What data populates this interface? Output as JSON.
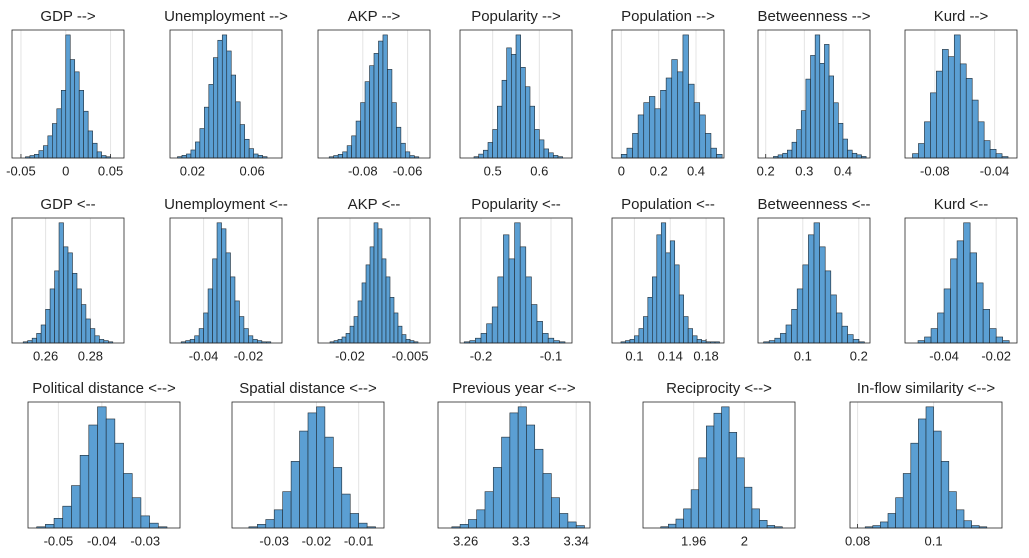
{
  "chart_data": [
    {
      "type": "histogram",
      "title": "GDP -->",
      "color": "#5b9fd3",
      "grid": true,
      "xlim": [
        -0.06,
        0.065
      ],
      "xticks": [
        -0.05,
        0,
        0.05
      ],
      "bins": [
        -0.045,
        -0.04,
        -0.035,
        -0.03,
        -0.025,
        -0.02,
        -0.015,
        -0.01,
        -0.005,
        0,
        0.005,
        0.01,
        0.015,
        0.02,
        0.025,
        0.03,
        0.035,
        0.04,
        0.045,
        0.05
      ],
      "counts": [
        1,
        2,
        3,
        6,
        10,
        18,
        28,
        40,
        55,
        100,
        80,
        70,
        55,
        38,
        22,
        12,
        5,
        2,
        1
      ]
    },
    {
      "type": "histogram",
      "title": "Unemployment -->",
      "color": "#5b9fd3",
      "grid": true,
      "xlim": [
        0.005,
        0.08
      ],
      "xticks": [
        0.02,
        0.06
      ],
      "bins": [
        0.01,
        0.013,
        0.016,
        0.019,
        0.022,
        0.025,
        0.028,
        0.031,
        0.034,
        0.037,
        0.04,
        0.043,
        0.046,
        0.049,
        0.052,
        0.055,
        0.058,
        0.061,
        0.064,
        0.067,
        0.07
      ],
      "counts": [
        1,
        2,
        3,
        6,
        12,
        22,
        38,
        55,
        75,
        88,
        92,
        80,
        62,
        42,
        25,
        14,
        7,
        3,
        2,
        1
      ]
    },
    {
      "type": "histogram",
      "title": "AKP -->",
      "color": "#5b9fd3",
      "grid": true,
      "xlim": [
        -0.1,
        -0.05
      ],
      "xticks": [
        -0.08,
        -0.06
      ],
      "bins": [
        -0.095,
        -0.093,
        -0.091,
        -0.089,
        -0.087,
        -0.085,
        -0.083,
        -0.081,
        -0.079,
        -0.077,
        -0.075,
        -0.073,
        -0.071,
        -0.069,
        -0.067,
        -0.065,
        -0.063,
        -0.061,
        -0.059,
        -0.057,
        -0.055
      ],
      "counts": [
        1,
        2,
        3,
        5,
        10,
        18,
        30,
        45,
        62,
        75,
        85,
        95,
        100,
        72,
        45,
        25,
        12,
        5,
        2,
        1
      ]
    },
    {
      "type": "histogram",
      "title": "Popularity -->",
      "color": "#5b9fd3",
      "grid": true,
      "xlim": [
        0.43,
        0.67
      ],
      "xticks": [
        0.5,
        0.6
      ],
      "bins": [
        0.46,
        0.47,
        0.48,
        0.49,
        0.5,
        0.51,
        0.52,
        0.53,
        0.54,
        0.55,
        0.56,
        0.57,
        0.58,
        0.59,
        0.6,
        0.61,
        0.62,
        0.63,
        0.64,
        0.65
      ],
      "counts": [
        1,
        3,
        6,
        12,
        22,
        40,
        60,
        85,
        80,
        95,
        70,
        55,
        40,
        22,
        14,
        7,
        4,
        2,
        1
      ]
    },
    {
      "type": "histogram",
      "title": "Population -->",
      "color": "#5b9fd3",
      "grid": true,
      "xlim": [
        -0.05,
        0.55
      ],
      "xticks": [
        0,
        0.2,
        0.4
      ],
      "bins": [
        0,
        0.03,
        0.06,
        0.09,
        0.12,
        0.15,
        0.18,
        0.21,
        0.24,
        0.27,
        0.3,
        0.33,
        0.36,
        0.39,
        0.42,
        0.45,
        0.48,
        0.51,
        0.54
      ],
      "counts": [
        3,
        8,
        20,
        35,
        45,
        50,
        40,
        55,
        65,
        80,
        70,
        100,
        60,
        45,
        35,
        20,
        8,
        3
      ]
    },
    {
      "type": "histogram",
      "title": "Betweenness -->",
      "color": "#5b9fd3",
      "grid": true,
      "xlim": [
        0.18,
        0.47
      ],
      "xticks": [
        0.2,
        0.3,
        0.4
      ],
      "bins": [
        0.22,
        0.232,
        0.244,
        0.256,
        0.268,
        0.28,
        0.292,
        0.304,
        0.316,
        0.328,
        0.34,
        0.352,
        0.364,
        0.376,
        0.388,
        0.4,
        0.412,
        0.424,
        0.436,
        0.448,
        0.46
      ],
      "counts": [
        1,
        2,
        3,
        5,
        10,
        18,
        30,
        50,
        65,
        78,
        60,
        72,
        52,
        35,
        22,
        12,
        5,
        3,
        2,
        1
      ]
    },
    {
      "type": "histogram",
      "title": "Kurd -->",
      "color": "#5b9fd3",
      "grid": true,
      "xlim": [
        -0.1,
        -0.025
      ],
      "xticks": [
        -0.08,
        -0.04
      ],
      "bins": [
        -0.095,
        -0.091,
        -0.087,
        -0.083,
        -0.079,
        -0.075,
        -0.071,
        -0.067,
        -0.063,
        -0.059,
        -0.055,
        -0.051,
        -0.047,
        -0.043,
        -0.039,
        -0.035,
        -0.031
      ],
      "counts": [
        3,
        10,
        25,
        45,
        60,
        75,
        70,
        85,
        65,
        55,
        40,
        25,
        12,
        6,
        3,
        1
      ]
    },
    {
      "type": "histogram",
      "title": "GDP <--",
      "color": "#5b9fd3",
      "grid": true,
      "xlim": [
        0.245,
        0.295
      ],
      "xticks": [
        0.26,
        0.28
      ],
      "bins": [
        0.25,
        0.252,
        0.254,
        0.256,
        0.258,
        0.26,
        0.262,
        0.264,
        0.266,
        0.268,
        0.27,
        0.272,
        0.274,
        0.276,
        0.278,
        0.28,
        0.282,
        0.284,
        0.286,
        0.288,
        0.29
      ],
      "counts": [
        1,
        2,
        4,
        8,
        15,
        28,
        45,
        60,
        100,
        80,
        75,
        58,
        45,
        32,
        20,
        12,
        6,
        3,
        2,
        1
      ]
    },
    {
      "type": "histogram",
      "title": "Unemployment <--",
      "color": "#5b9fd3",
      "grid": true,
      "xlim": [
        -0.055,
        -0.005
      ],
      "xticks": [
        -0.04,
        -0.02
      ],
      "bins": [
        -0.05,
        -0.048,
        -0.046,
        -0.044,
        -0.042,
        -0.04,
        -0.038,
        -0.036,
        -0.034,
        -0.032,
        -0.03,
        -0.028,
        -0.026,
        -0.024,
        -0.022,
        -0.02,
        -0.018,
        -0.016,
        -0.014,
        -0.012,
        -0.01
      ],
      "counts": [
        1,
        2,
        3,
        6,
        12,
        25,
        45,
        70,
        100,
        95,
        75,
        55,
        35,
        22,
        12,
        6,
        3,
        2,
        1,
        1
      ]
    },
    {
      "type": "histogram",
      "title": "AKP <--",
      "color": "#5b9fd3",
      "grid": true,
      "xlim": [
        -0.028,
        0.0
      ],
      "xticks": [
        -0.02,
        -0.005
      ],
      "bins": [
        -0.025,
        -0.024,
        -0.023,
        -0.022,
        -0.021,
        -0.02,
        -0.019,
        -0.018,
        -0.017,
        -0.016,
        -0.015,
        -0.014,
        -0.013,
        -0.012,
        -0.011,
        -0.01,
        -0.009,
        -0.008,
        -0.007,
        -0.006,
        -0.005,
        -0.004,
        -0.003
      ],
      "counts": [
        1,
        2,
        3,
        5,
        8,
        14,
        22,
        35,
        50,
        65,
        80,
        100,
        95,
        70,
        55,
        38,
        25,
        14,
        7,
        3,
        2,
        1
      ]
    },
    {
      "type": "histogram",
      "title": "Popularity <--",
      "color": "#5b9fd3",
      "grid": true,
      "xlim": [
        -0.23,
        -0.07
      ],
      "xticks": [
        -0.2,
        -0.1
      ],
      "bins": [
        -0.224,
        -0.216,
        -0.208,
        -0.2,
        -0.192,
        -0.184,
        -0.176,
        -0.168,
        -0.16,
        -0.152,
        -0.144,
        -0.136,
        -0.128,
        -0.12,
        -0.112,
        -0.104,
        -0.096,
        -0.088,
        -0.08
      ],
      "counts": [
        1,
        2,
        4,
        8,
        16,
        30,
        55,
        90,
        70,
        100,
        80,
        55,
        32,
        18,
        8,
        4,
        2,
        1
      ]
    },
    {
      "type": "histogram",
      "title": "Population <--",
      "color": "#5b9fd3",
      "grid": true,
      "xlim": [
        0.075,
        0.2
      ],
      "xticks": [
        0.1,
        0.14,
        0.18
      ],
      "bins": [
        0.085,
        0.09,
        0.095,
        0.1,
        0.105,
        0.11,
        0.115,
        0.12,
        0.125,
        0.13,
        0.135,
        0.14,
        0.145,
        0.15,
        0.155,
        0.16,
        0.165,
        0.17,
        0.175,
        0.18,
        0.185,
        0.19,
        0.195
      ],
      "counts": [
        1,
        2,
        3,
        6,
        12,
        22,
        38,
        55,
        90,
        100,
        75,
        85,
        65,
        40,
        22,
        12,
        6,
        3,
        2,
        1,
        1,
        1
      ]
    },
    {
      "type": "histogram",
      "title": "Betweenness <--",
      "color": "#5b9fd3",
      "grid": true,
      "xlim": [
        0.02,
        0.22
      ],
      "xticks": [
        0.1,
        0.2
      ],
      "bins": [
        0.03,
        0.04,
        0.05,
        0.06,
        0.07,
        0.08,
        0.09,
        0.1,
        0.11,
        0.12,
        0.13,
        0.14,
        0.15,
        0.16,
        0.17,
        0.18,
        0.19,
        0.2,
        0.21
      ],
      "counts": [
        1,
        2,
        4,
        8,
        15,
        28,
        45,
        65,
        90,
        100,
        80,
        60,
        40,
        25,
        14,
        7,
        3,
        1
      ]
    },
    {
      "type": "histogram",
      "title": "Kurd <--",
      "color": "#5b9fd3",
      "grid": true,
      "xlim": [
        -0.055,
        -0.012
      ],
      "xticks": [
        -0.04,
        -0.02
      ],
      "bins": [
        -0.05,
        -0.0475,
        -0.045,
        -0.0425,
        -0.04,
        -0.0375,
        -0.035,
        -0.0325,
        -0.03,
        -0.0275,
        -0.025,
        -0.0225,
        -0.02,
        -0.0175,
        -0.015
      ],
      "counts": [
        2,
        5,
        12,
        25,
        45,
        70,
        85,
        100,
        75,
        50,
        28,
        12,
        5,
        2
      ]
    },
    {
      "type": "histogram",
      "title": "Political distance <-->",
      "color": "#5b9fd3",
      "grid": true,
      "xlim": [
        -0.057,
        -0.022
      ],
      "xticks": [
        -0.05,
        -0.04,
        -0.03
      ],
      "bins": [
        -0.055,
        -0.053,
        -0.051,
        -0.049,
        -0.047,
        -0.045,
        -0.043,
        -0.041,
        -0.039,
        -0.037,
        -0.035,
        -0.033,
        -0.031,
        -0.029,
        -0.027,
        -0.025
      ],
      "counts": [
        1,
        3,
        8,
        18,
        35,
        60,
        85,
        100,
        90,
        70,
        45,
        25,
        10,
        4,
        1
      ]
    },
    {
      "type": "histogram",
      "title": "Spatial distance <-->",
      "color": "#5b9fd3",
      "grid": true,
      "xlim": [
        -0.04,
        -0.004
      ],
      "xticks": [
        -0.03,
        -0.02,
        -0.01
      ],
      "bins": [
        -0.036,
        -0.034,
        -0.032,
        -0.03,
        -0.028,
        -0.026,
        -0.024,
        -0.022,
        -0.02,
        -0.018,
        -0.016,
        -0.014,
        -0.012,
        -0.01,
        -0.008,
        -0.006
      ],
      "counts": [
        1,
        3,
        7,
        15,
        30,
        55,
        80,
        95,
        100,
        75,
        50,
        28,
        12,
        4,
        1
      ]
    },
    {
      "type": "histogram",
      "title": "Previous year <-->",
      "color": "#5b9fd3",
      "grid": true,
      "xlim": [
        3.24,
        3.35
      ],
      "xticks": [
        3.26,
        3.3,
        3.34
      ],
      "bins": [
        3.25,
        3.256,
        3.262,
        3.268,
        3.274,
        3.28,
        3.286,
        3.292,
        3.298,
        3.304,
        3.31,
        3.316,
        3.322,
        3.328,
        3.334,
        3.34,
        3.346
      ],
      "counts": [
        1,
        3,
        7,
        15,
        30,
        50,
        75,
        95,
        100,
        85,
        65,
        45,
        25,
        12,
        5,
        2
      ]
    },
    {
      "type": "histogram",
      "title": "Reciprocity <-->",
      "color": "#5b9fd3",
      "grid": true,
      "xlim": [
        1.92,
        2.04
      ],
      "xticks": [
        1.96,
        2
      ],
      "bins": [
        1.934,
        1.94,
        1.946,
        1.952,
        1.958,
        1.964,
        1.97,
        1.976,
        1.982,
        1.988,
        1.994,
        2,
        2.006,
        2.012,
        2.018,
        2.024,
        2.03
      ],
      "counts": [
        1,
        3,
        7,
        15,
        30,
        55,
        80,
        90,
        95,
        75,
        55,
        32,
        15,
        6,
        2,
        1
      ]
    },
    {
      "type": "histogram",
      "title": "In-flow similarity <-->",
      "color": "#5b9fd3",
      "grid": true,
      "xlim": [
        0.078,
        0.118
      ],
      "xticks": [
        0.08,
        0.1
      ],
      "bins": [
        0.082,
        0.084,
        0.086,
        0.088,
        0.09,
        0.092,
        0.094,
        0.096,
        0.098,
        0.1,
        0.102,
        0.104,
        0.106,
        0.108,
        0.11,
        0.112,
        0.114
      ],
      "counts": [
        1,
        2,
        5,
        12,
        25,
        45,
        70,
        90,
        100,
        80,
        55,
        30,
        15,
        6,
        2,
        1
      ]
    }
  ]
}
